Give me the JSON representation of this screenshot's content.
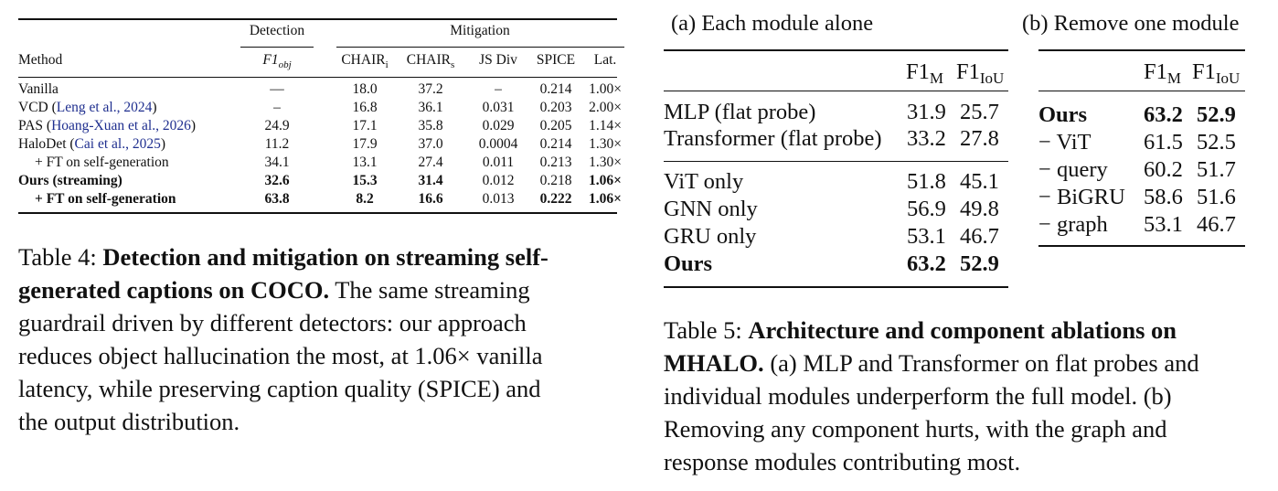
{
  "table4": {
    "group_detection": "Detection",
    "group_mitigation": "Mitigation",
    "headers": {
      "method": "Method",
      "detection": "F1",
      "detection_sub": "obj",
      "chair_i": "CHAIR",
      "chair_i_sub": "i",
      "chair_s": "CHAIR",
      "chair_s_sub": "s",
      "js_div": "JS Div",
      "spice": "SPICE",
      "latency": "Lat."
    },
    "rows": [
      {
        "method": "Vanilla",
        "cite": "",
        "det": "—",
        "ci": "18.0",
        "cs": "37.2",
        "js": "–",
        "spice": "0.214",
        "lat": "1.00×"
      },
      {
        "method": "VCD (",
        "cite": "Leng et al., 2024",
        "close": ")",
        "det": "–",
        "ci": "16.8",
        "cs": "36.1",
        "js": "0.031",
        "spice": "0.203",
        "lat": "2.00×"
      },
      {
        "method": "PAS (",
        "cite": "Hoang-Xuan et al., 2026",
        "close": ")",
        "det": "24.9",
        "ci": "17.1",
        "cs": "35.8",
        "js": "0.029",
        "spice": "0.205",
        "lat": "1.14×"
      },
      {
        "method": "HaloDet (",
        "cite": "Cai et al., 2025",
        "close": ")",
        "det": "11.2",
        "ci": "17.9",
        "cs": "37.0",
        "js": "0.0004",
        "spice": "0.214",
        "lat": "1.30×"
      },
      {
        "method": "+ FT on self-generation",
        "cite": "",
        "det": "34.1",
        "ci": "13.1",
        "cs": "27.4",
        "js": "0.011",
        "spice": "0.213",
        "lat": "1.30×"
      },
      {
        "method": "Ours (streaming)",
        "cite": "",
        "det": "32.6",
        "ci": "15.3",
        "cs": "31.4",
        "js": "0.012",
        "spice": "0.218",
        "lat": "1.06×"
      },
      {
        "method": "+ FT on self-generation",
        "cite": "",
        "det": "63.8",
        "ci": "8.2",
        "cs": "16.6",
        "js": "0.013",
        "spice": "0.222",
        "lat": "1.06×"
      }
    ],
    "caption": {
      "label": "Table 4:",
      "bold_line1": "Detection and mitigation on streaming self-",
      "bold_line2": "generated captions on COCO.",
      "rest_line2": "The same streaming",
      "line3": "guardrail driven by different detectors: our approach",
      "line4": "reduces object hallucination the most, at 1.06× vanilla",
      "line5": "latency, while preserving caption quality (SPICE) and",
      "line6": "the output distribution."
    }
  },
  "table5a": {
    "title": "(a) Each module alone",
    "col1": "F1",
    "col1_sub": "M",
    "col2": "F1",
    "col2_sub": "IoU",
    "rows": [
      {
        "name": "MLP (flat probe)",
        "f1m": "31.9",
        "f1iou": "25.7"
      },
      {
        "name": "Transformer (flat probe)",
        "f1m": "33.2",
        "f1iou": "27.8"
      },
      {
        "name": "ViT only",
        "f1m": "51.8",
        "f1iou": "45.1"
      },
      {
        "name": "GNN only",
        "f1m": "56.9",
        "f1iou": "49.8"
      },
      {
        "name": "GRU only",
        "f1m": "53.1",
        "f1iou": "46.7"
      },
      {
        "name": "Ours",
        "f1m": "63.2",
        "f1iou": "52.9"
      }
    ]
  },
  "table5b": {
    "title": "(b) Remove one module",
    "col1": "F1",
    "col1_sub": "M",
    "col2": "F1",
    "col2_sub": "IoU",
    "rows": [
      {
        "name": "Ours",
        "f1m": "63.2",
        "f1iou": "52.9"
      },
      {
        "name": "− ViT",
        "f1m": "61.5",
        "f1iou": "52.5"
      },
      {
        "name": "− query",
        "f1m": "60.2",
        "f1iou": "51.7"
      },
      {
        "name": "− BiGRU",
        "f1m": "58.6",
        "f1iou": "51.6"
      },
      {
        "name": "− graph",
        "f1m": "53.1",
        "f1iou": "46.7"
      }
    ]
  },
  "table5_caption": {
    "label": "Table 5:",
    "bold_line1": "Architecture and component ablations on",
    "bold_line2": "MHALO.",
    "rest_line2": "(a) MLP and Transformer on flat probes and",
    "line3": "individual modules underperform the full model. (b)",
    "line4": "Removing any component hurts, with the graph and",
    "line5": "response modules contributing most."
  }
}
